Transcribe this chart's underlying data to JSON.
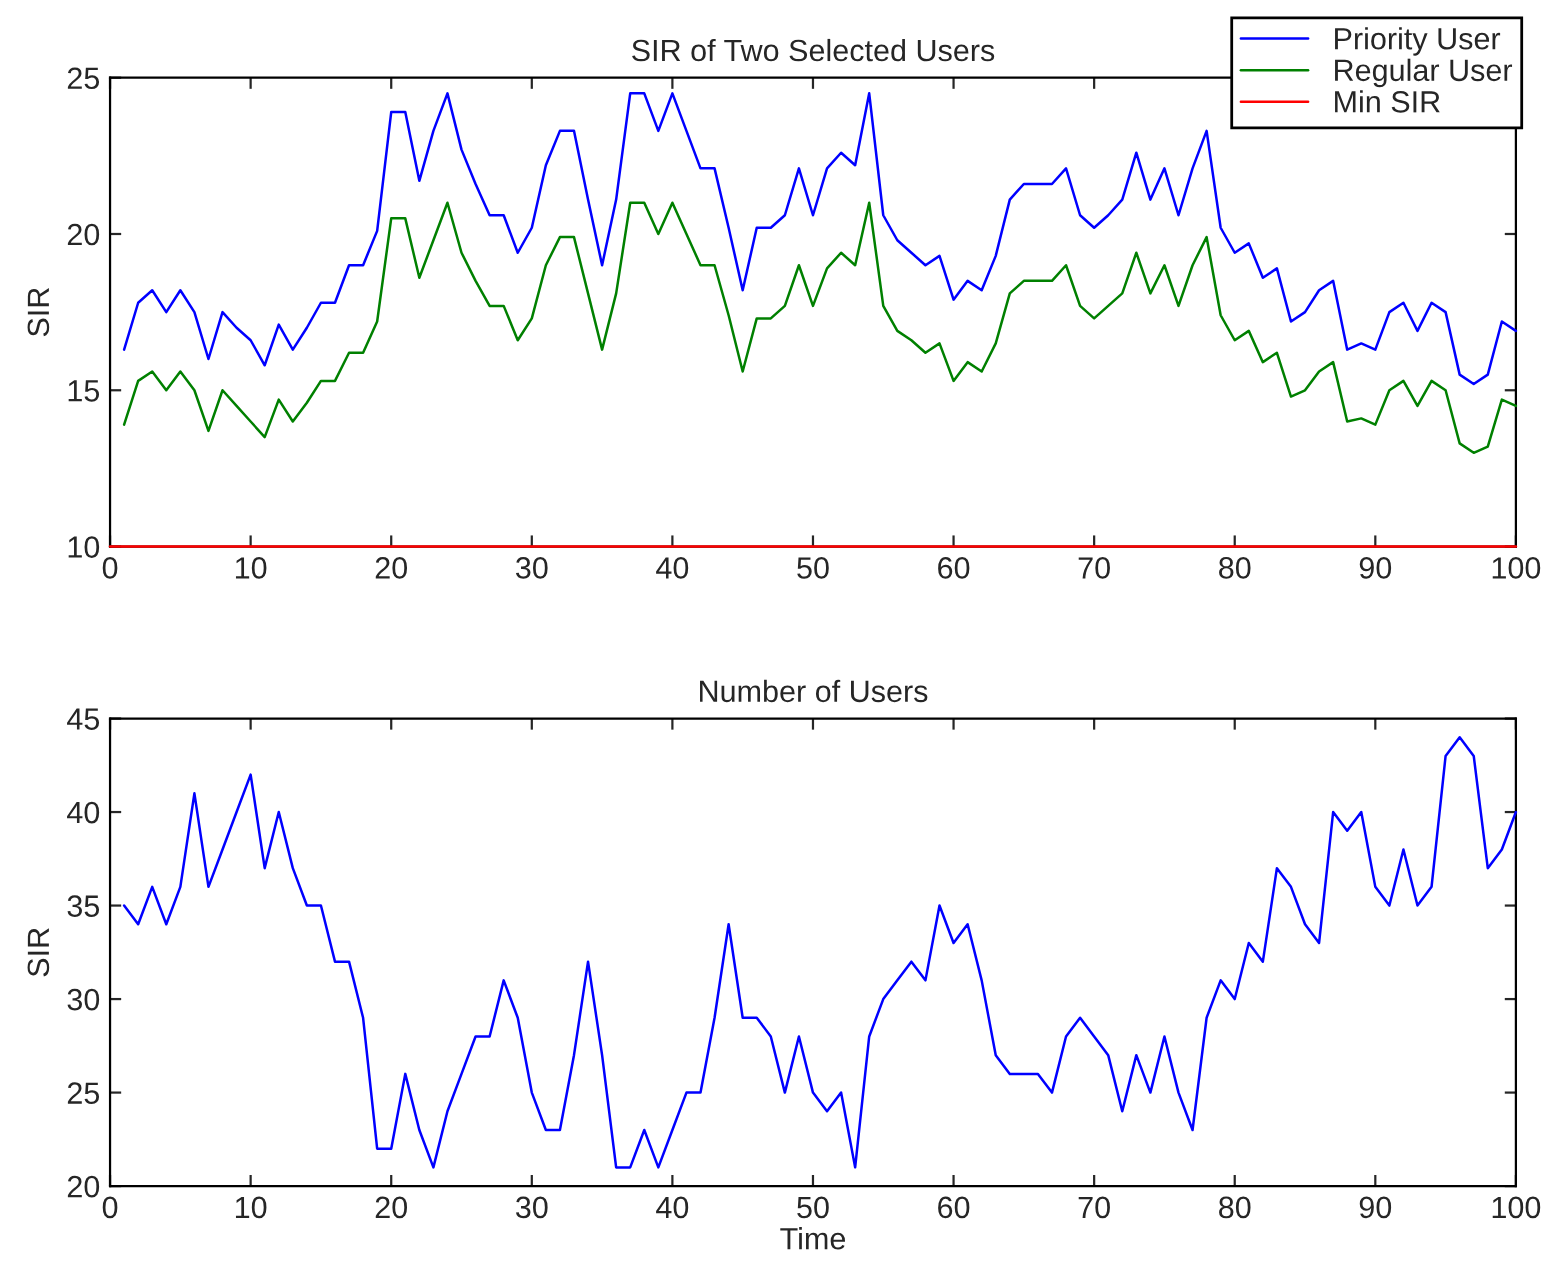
{
  "chart_data": [
    {
      "type": "line",
      "title": "SIR of Two Selected Users",
      "ylabel": "SIR",
      "xlim": [
        0,
        100
      ],
      "xticks": [
        0,
        10,
        20,
        30,
        40,
        50,
        60,
        70,
        80,
        90,
        100
      ],
      "ylim": [
        10,
        25
      ],
      "yticks": [
        10,
        15,
        20,
        25
      ],
      "grid": false,
      "legend": "top right",
      "x": [
        1,
        2,
        3,
        4,
        5,
        6,
        7,
        8,
        9,
        10,
        11,
        12,
        13,
        14,
        15,
        16,
        17,
        18,
        19,
        20,
        21,
        22,
        23,
        24,
        25,
        26,
        27,
        28,
        29,
        30,
        31,
        32,
        33,
        34,
        35,
        36,
        37,
        38,
        39,
        40,
        41,
        42,
        43,
        44,
        45,
        46,
        47,
        48,
        49,
        50,
        51,
        52,
        53,
        54,
        55,
        56,
        57,
        58,
        59,
        60,
        61,
        62,
        63,
        64,
        65,
        66,
        67,
        68,
        69,
        70,
        71,
        72,
        73,
        74,
        75,
        76,
        77,
        78,
        79,
        80,
        81,
        82,
        83,
        84,
        85,
        86,
        87,
        88,
        89,
        90,
        91,
        92,
        93,
        94,
        95,
        96,
        97,
        98,
        99,
        100
      ],
      "series": [
        {
          "name": "Priority User",
          "color": "#0000ff",
          "values": [
            16.3,
            17.8,
            18.2,
            17.5,
            18.2,
            17.5,
            16.0,
            17.5,
            17.0,
            16.6,
            15.8,
            17.1,
            16.3,
            17.0,
            17.8,
            17.8,
            19.0,
            19.0,
            20.1,
            23.9,
            23.9,
            21.7,
            23.3,
            24.5,
            22.7,
            21.6,
            20.6,
            20.6,
            19.4,
            20.2,
            22.2,
            23.3,
            23.3,
            21.1,
            19.0,
            21.1,
            24.5,
            24.5,
            23.3,
            24.5,
            23.3,
            22.1,
            22.1,
            20.2,
            18.2,
            20.2,
            20.2,
            20.6,
            22.1,
            20.6,
            22.1,
            22.6,
            22.2,
            24.5,
            20.6,
            19.8,
            19.4,
            19.0,
            19.3,
            17.9,
            18.5,
            18.2,
            19.3,
            21.1,
            21.6,
            21.6,
            21.6,
            22.1,
            20.6,
            20.2,
            20.6,
            21.1,
            22.6,
            21.1,
            22.1,
            20.6,
            22.1,
            23.3,
            20.2,
            19.4,
            19.7,
            18.6,
            18.9,
            17.2,
            17.5,
            18.2,
            18.5,
            16.3,
            16.5,
            16.3,
            17.5,
            17.8,
            16.9,
            17.8,
            17.5,
            15.5,
            15.2,
            15.5,
            17.2,
            16.9
          ]
        },
        {
          "name": "Regular User",
          "color": "#008000",
          "values": [
            13.9,
            15.3,
            15.6,
            15.0,
            15.6,
            15.0,
            13.7,
            15.0,
            14.5,
            14.0,
            13.5,
            14.7,
            14.0,
            14.6,
            15.3,
            15.3,
            16.2,
            16.2,
            17.2,
            20.5,
            20.5,
            18.6,
            19.8,
            21.0,
            19.4,
            18.5,
            17.7,
            17.7,
            16.6,
            17.3,
            19.0,
            19.9,
            19.9,
            18.1,
            16.3,
            18.1,
            21.0,
            21.0,
            20.0,
            21.0,
            20.0,
            19.0,
            19.0,
            17.4,
            15.6,
            17.3,
            17.3,
            17.7,
            19.0,
            17.7,
            18.9,
            19.4,
            19.0,
            21.0,
            17.7,
            16.9,
            16.6,
            16.2,
            16.5,
            15.3,
            15.9,
            15.6,
            16.5,
            18.1,
            18.5,
            18.5,
            18.5,
            19.0,
            17.7,
            17.3,
            17.7,
            18.1,
            19.4,
            18.1,
            19.0,
            17.7,
            19.0,
            19.9,
            17.4,
            16.6,
            16.9,
            15.9,
            16.2,
            14.8,
            15.0,
            15.6,
            15.9,
            14.0,
            14.1,
            13.9,
            15.0,
            15.3,
            14.5,
            15.3,
            15.0,
            13.3,
            13.0,
            13.2,
            14.7,
            14.5
          ]
        },
        {
          "name": "Min SIR",
          "color": "#ff0000",
          "x": [
            0,
            100
          ],
          "values": [
            10,
            10
          ]
        }
      ]
    },
    {
      "type": "line",
      "title": "Number of Users",
      "xlabel": "Time",
      "ylabel": "SIR",
      "xlim": [
        0,
        100
      ],
      "xticks": [
        0,
        10,
        20,
        30,
        40,
        50,
        60,
        70,
        80,
        90,
        100
      ],
      "ylim": [
        20,
        45
      ],
      "yticks": [
        20,
        25,
        30,
        35,
        40,
        45
      ],
      "grid": false,
      "legend": false,
      "x": [
        1,
        2,
        3,
        4,
        5,
        6,
        7,
        8,
        9,
        10,
        11,
        12,
        13,
        14,
        15,
        16,
        17,
        18,
        19,
        20,
        21,
        22,
        23,
        24,
        25,
        26,
        27,
        28,
        29,
        30,
        31,
        32,
        33,
        34,
        35,
        36,
        37,
        38,
        39,
        40,
        41,
        42,
        43,
        44,
        45,
        46,
        47,
        48,
        49,
        50,
        51,
        52,
        53,
        54,
        55,
        56,
        57,
        58,
        59,
        60,
        61,
        62,
        63,
        64,
        65,
        66,
        67,
        68,
        69,
        70,
        71,
        72,
        73,
        74,
        75,
        76,
        77,
        78,
        79,
        80,
        81,
        82,
        83,
        84,
        85,
        86,
        87,
        88,
        89,
        90,
        91,
        92,
        93,
        94,
        95,
        96,
        97,
        98,
        99,
        100
      ],
      "series": [
        {
          "color": "#0000ff",
          "values": [
            35,
            34,
            36,
            34,
            36,
            41,
            36,
            38,
            40,
            42,
            37,
            40,
            37,
            35,
            35,
            32,
            32,
            29,
            22,
            22,
            26,
            23,
            21,
            24,
            26,
            28,
            28,
            31,
            29,
            25,
            23,
            23,
            27,
            32,
            27,
            21,
            21,
            23,
            21,
            23,
            25,
            25,
            29,
            34,
            29,
            29,
            28,
            25,
            28,
            25,
            24,
            25,
            21,
            28,
            30,
            31,
            32,
            31,
            35,
            33,
            34,
            31,
            27,
            26,
            26,
            26,
            25,
            28,
            29,
            28,
            27,
            24,
            27,
            25,
            28,
            25,
            23,
            29,
            31,
            30,
            33,
            32,
            37,
            36,
            34,
            33,
            40,
            39,
            40,
            36,
            35,
            38,
            35,
            36,
            43,
            44,
            43,
            37,
            38,
            40
          ]
        }
      ]
    }
  ]
}
